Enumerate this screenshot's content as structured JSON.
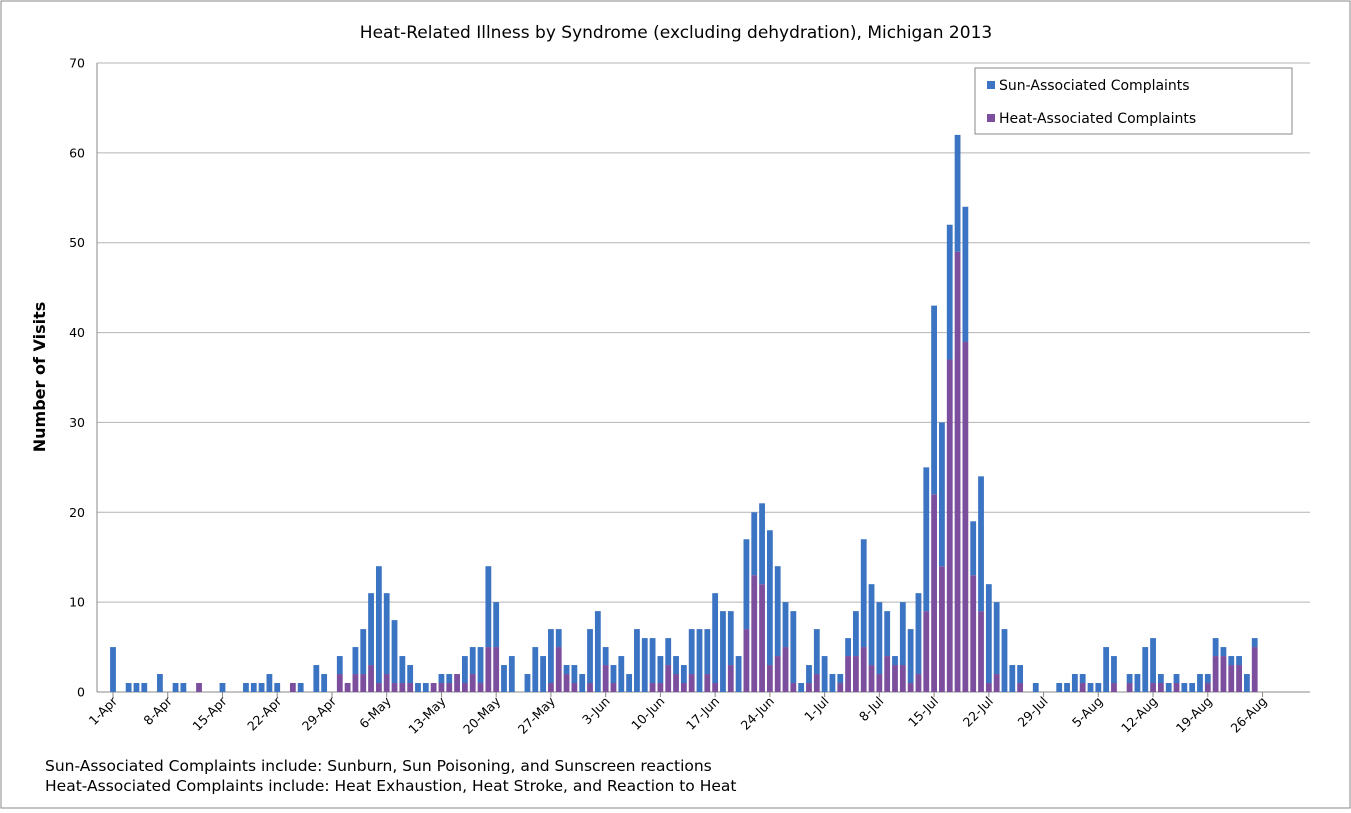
{
  "chart_data": {
    "type": "stacked-bar",
    "title": "Heat-Related Illness by Syndrome (excluding dehydration), Michigan 2013",
    "y_label": "Number of Visits",
    "notes": [
      "Sun-Associated Complaints include: Sunburn, Sun Poisoning, and Sunscreen reactions",
      "Heat-Associated Complaints include: Heat Exhaustion, Heat Stroke, and Reaction to Heat"
    ],
    "categories": [
      "1-Apr",
      null,
      null,
      null,
      null,
      null,
      null,
      "8-Apr",
      null,
      null,
      null,
      null,
      null,
      null,
      "15-Apr",
      null,
      null,
      null,
      null,
      null,
      null,
      "22-Apr",
      null,
      null,
      null,
      null,
      null,
      null,
      "29-Apr",
      null,
      null,
      null,
      null,
      null,
      null,
      "6-May",
      null,
      null,
      null,
      null,
      null,
      null,
      "13-May",
      null,
      null,
      null,
      null,
      null,
      null,
      "20-May",
      null,
      null,
      null,
      null,
      null,
      null,
      "27-May",
      null,
      null,
      null,
      null,
      null,
      null,
      "3-Jun",
      null,
      null,
      null,
      null,
      null,
      null,
      "10-Jun",
      null,
      null,
      null,
      null,
      null,
      null,
      "17-Jun",
      null,
      null,
      null,
      null,
      null,
      null,
      "24-Jun",
      null,
      null,
      null,
      null,
      null,
      null,
      "1-Jul",
      null,
      null,
      null,
      null,
      null,
      null,
      "8-Jul",
      null,
      null,
      null,
      null,
      null,
      null,
      "15-Jul",
      null,
      null,
      null,
      null,
      null,
      null,
      "22-Jul",
      null,
      null,
      null,
      null,
      null,
      null,
      "29-Jul",
      null,
      null,
      null,
      null,
      null,
      null,
      "5-Aug",
      null,
      null,
      null,
      null,
      null,
      null,
      "12-Aug",
      null,
      null,
      null,
      null,
      null,
      null,
      "19-Aug",
      null,
      null,
      null,
      null,
      null,
      null,
      "26-Aug"
    ],
    "series": [
      {
        "name": "Sun-Associated Complaints",
        "color": "#3b74c2",
        "values": [
          5,
          0,
          1,
          1,
          1,
          0,
          2,
          0,
          1,
          1,
          0,
          0,
          0,
          0,
          1,
          0,
          0,
          1,
          1,
          1,
          2,
          1,
          0,
          0,
          1,
          0,
          3,
          2,
          0,
          2,
          0,
          3,
          5,
          8,
          13,
          9,
          7,
          3,
          2,
          1,
          1,
          0,
          1,
          1,
          0,
          3,
          3,
          4,
          9,
          5,
          3,
          4,
          0,
          2,
          5,
          4,
          6,
          2,
          1,
          2,
          2,
          6,
          9,
          2,
          2,
          4,
          2,
          7,
          6,
          5,
          3,
          3,
          2,
          2,
          5,
          7,
          5,
          10,
          9,
          6,
          4,
          10,
          7,
          9,
          15,
          10,
          5,
          8,
          1,
          2,
          5,
          4,
          2,
          1,
          2,
          5,
          12,
          9,
          8,
          5,
          1,
          7,
          6,
          9,
          16,
          21,
          16,
          15,
          13,
          15,
          6,
          15,
          11,
          8,
          7,
          3,
          2,
          0,
          1,
          0,
          0,
          1,
          1,
          2,
          1,
          1,
          1,
          5,
          3,
          0,
          1,
          2,
          5,
          5,
          1,
          1,
          1,
          1,
          1,
          2,
          1,
          2,
          1,
          1,
          1,
          2,
          1,
          0
        ]
      },
      {
        "name": "Heat-Associated Complaints",
        "color": "#7b4f9e",
        "values": [
          0,
          0,
          0,
          0,
          0,
          0,
          0,
          0,
          0,
          0,
          0,
          1,
          0,
          0,
          0,
          0,
          0,
          0,
          0,
          0,
          0,
          0,
          0,
          1,
          0,
          0,
          0,
          0,
          0,
          2,
          1,
          2,
          2,
          3,
          1,
          2,
          1,
          1,
          1,
          0,
          0,
          1,
          1,
          1,
          2,
          1,
          2,
          1,
          5,
          5,
          0,
          0,
          0,
          0,
          0,
          0,
          1,
          5,
          2,
          1,
          0,
          1,
          0,
          3,
          1,
          0,
          0,
          0,
          0,
          1,
          1,
          3,
          2,
          1,
          2,
          0,
          2,
          1,
          0,
          3,
          0,
          7,
          13,
          12,
          3,
          4,
          5,
          1,
          0,
          1,
          2,
          0,
          0,
          1,
          4,
          4,
          5,
          3,
          2,
          4,
          3,
          3,
          1,
          2,
          9,
          22,
          14,
          37,
          49,
          39,
          13,
          9,
          1,
          2,
          0,
          0,
          1,
          0,
          0,
          0,
          0,
          0,
          0,
          0,
          1,
          0,
          0,
          0,
          1,
          0,
          1,
          0,
          0,
          1,
          1,
          0,
          1,
          0,
          0,
          0,
          1,
          4,
          4,
          3,
          3,
          0,
          5,
          0
        ]
      }
    ],
    "ylim": [
      0,
      70
    ],
    "yticks": [
      0,
      10,
      20,
      30,
      40,
      50,
      60,
      70
    ],
    "grid": true,
    "legend": "top-right"
  }
}
